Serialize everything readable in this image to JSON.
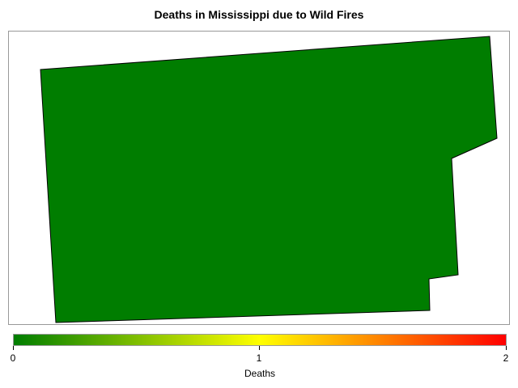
{
  "title": "Deaths in Mississippi due to Wild Fires",
  "map": {
    "region_value": 0,
    "fill_color": "#007d00",
    "outline_color": "#000000"
  },
  "legend": {
    "title": "Deaths",
    "min": 0,
    "max": 2,
    "ticks": [
      "0",
      "1",
      "2"
    ],
    "colors": [
      "#007d00",
      "#ffff00",
      "#ff0000"
    ]
  }
}
